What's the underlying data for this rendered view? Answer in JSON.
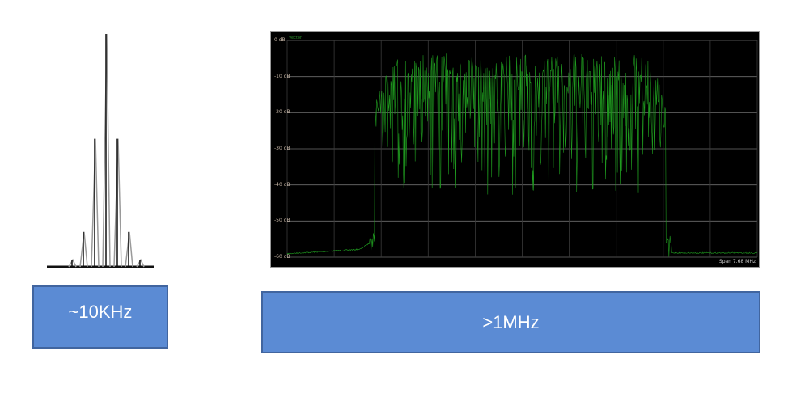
{
  "narrowband": {
    "label": "~10KHz",
    "spike_heights": [
      0.03,
      0.15,
      0.55,
      1.0,
      0.55,
      0.15,
      0.03
    ],
    "colors": {
      "spike": "#111111",
      "spike_shadow": "#9a9a9a"
    }
  },
  "wideband": {
    "label": ">1MHz",
    "trace_name": "Vector",
    "y_axis_labels": [
      "0 dB",
      "-10 dB",
      "-20 dB",
      "-30 dB",
      "-40 dB",
      "-50 dB",
      "-60 dB"
    ],
    "span_text": "Span 7.68 MHz",
    "colors": {
      "background": "#000000",
      "trace": "#1f9a1f",
      "grid": "#6e6e6e"
    }
  },
  "colors": {
    "box_fill": "#5b8bd4",
    "box_border": "#41659f"
  }
}
